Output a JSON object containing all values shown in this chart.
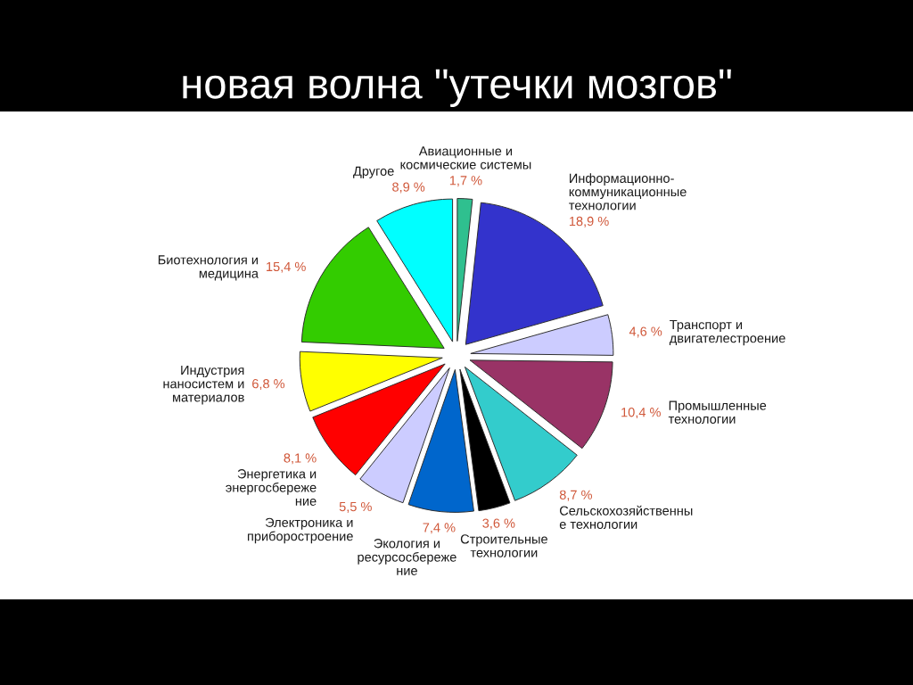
{
  "chart_data": {
    "type": "pie",
    "title": "новая волна \"утечки мозгов\"",
    "categories": [
      "Авиационные и\nкосмические системы",
      "Информационно-\nкоммуникационные\nтехнологии",
      "Транспорт и\nдвигателестроение",
      "Промышленные\nтехнологии",
      "Сельскохозяйственны\nе технологии",
      "Строительные\nтехнологии",
      "Экология и\nресурсосбереже\nние",
      "Электроника и\nприборостроение",
      "Энергетика и\nэнергосбереже\nние",
      "Индустрия\nнаносистем и\nматериалов",
      "Биотехнология и\nмедицина",
      "Другое"
    ],
    "values": [
      1.7,
      18.9,
      4.6,
      10.4,
      8.7,
      3.6,
      7.4,
      5.5,
      8.1,
      6.8,
      15.4,
      8.9
    ],
    "value_labels": [
      "1,7 %",
      "18,9 %",
      "4,6 %",
      "10,4 %",
      "8,7 %",
      "3,6 %",
      "7,4 %",
      "5,5 %",
      "8,1 %",
      "6,8 %",
      "15,4 %",
      "8,9 %"
    ],
    "colors": [
      "#2fc08f",
      "#3333cc",
      "#ccccff",
      "#993366",
      "#33cccc",
      "#000000",
      "#0066cc",
      "#ccccff",
      "#ff0000",
      "#ffff00",
      "#33cc00",
      "#00ffff"
    ]
  }
}
